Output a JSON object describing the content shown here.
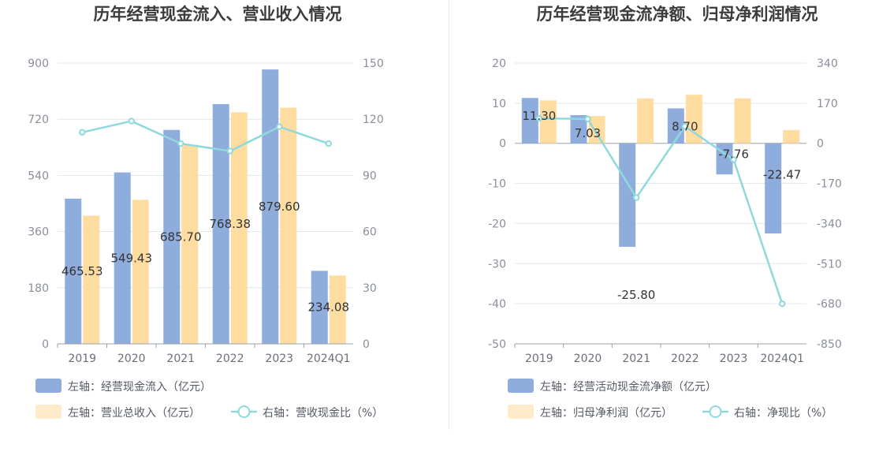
{
  "charts": [
    {
      "type": "bar",
      "title": "历年经营现金流入、营业收入情况",
      "categories": [
        "2019",
        "2020",
        "2021",
        "2022",
        "2023",
        "2024Q1"
      ],
      "series": [
        {
          "name": "左轴：经营现金流入（亿元）",
          "axis": "left",
          "kind": "bar",
          "color": "#8eacdc",
          "values": [
            465.53,
            549.43,
            685.7,
            768.38,
            879.6,
            234.08
          ]
        },
        {
          "name": "左轴：营业总收入（亿元）",
          "axis": "left",
          "kind": "bar",
          "color": "#ffdca0",
          "values": [
            411,
            462,
            638,
            742,
            757,
            219
          ]
        },
        {
          "name": "右轴：营收现金比（%）",
          "axis": "right",
          "kind": "line",
          "color": "#8fd9dc",
          "values": [
            113,
            119,
            107,
            103,
            116,
            107
          ]
        }
      ],
      "data_labels": [
        "465.53",
        "549.43",
        "685.70",
        "768.38",
        "879.60",
        "234.08"
      ],
      "left_axis": {
        "min": 0,
        "max": 900,
        "ticks": [
          "0",
          "180",
          "360",
          "540",
          "720",
          "900"
        ]
      },
      "right_axis": {
        "min": 0,
        "max": 150,
        "ticks": [
          "0",
          "30",
          "60",
          "90",
          "120",
          "150"
        ]
      },
      "grid": true,
      "legend_position": "bottom-left"
    },
    {
      "type": "bar",
      "title": "历年经营现金流净额、归母净利润情况",
      "categories": [
        "2019",
        "2020",
        "2021",
        "2022",
        "2023",
        "2024Q1"
      ],
      "series": [
        {
          "name": "左轴：经营活动现金流净额（亿元）",
          "axis": "left",
          "kind": "bar",
          "color": "#8eacdc",
          "values": [
            11.3,
            7.03,
            -25.8,
            8.7,
            -7.76,
            -22.47
          ]
        },
        {
          "name": "左轴：归母净利润（亿元）",
          "axis": "left",
          "kind": "bar",
          "color": "#ffdca0",
          "values": [
            10.7,
            6.8,
            11.2,
            12.1,
            11.2,
            3.3
          ]
        },
        {
          "name": "右轴：净现比（%）",
          "axis": "right",
          "kind": "line",
          "color": "#8fd9dc",
          "values": [
            106,
            103,
            -230,
            72,
            -69,
            -680
          ]
        }
      ],
      "data_labels": [
        "11.30",
        "7.03",
        "-25.80",
        "8.70",
        "-7.76",
        "-22.47"
      ],
      "left_axis": {
        "min": -50,
        "max": 20,
        "ticks": [
          "-50",
          "-40",
          "-30",
          "-20",
          "-10",
          "0",
          "10",
          "20"
        ]
      },
      "right_axis": {
        "min": -850,
        "max": 340,
        "ticks": [
          "-850",
          "-680",
          "-510",
          "-340",
          "-170",
          "0",
          "170",
          "340"
        ]
      },
      "grid": true,
      "legend_position": "bottom-left"
    }
  ]
}
